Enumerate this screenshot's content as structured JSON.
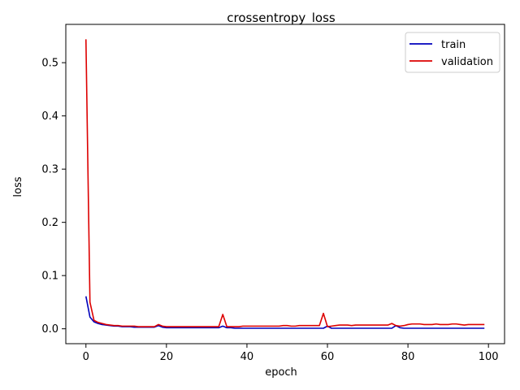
{
  "chart_data": {
    "type": "line",
    "title": "crossentropy_loss",
    "xlabel": "epoch",
    "ylabel": "loss",
    "xlim": [
      -5,
      104
    ],
    "ylim": [
      -0.028,
      0.572
    ],
    "xticks": [
      0,
      20,
      40,
      60,
      80,
      100
    ],
    "yticks": [
      0.0,
      0.1,
      0.2,
      0.3,
      0.4,
      0.5
    ],
    "grid": false,
    "legend_placement": "top-right",
    "series": [
      {
        "name": "train",
        "color": "#0000bb",
        "x": [
          0,
          1,
          2,
          3,
          4,
          5,
          6,
          7,
          8,
          9,
          10,
          11,
          12,
          13,
          14,
          15,
          16,
          17,
          18,
          19,
          20,
          21,
          22,
          23,
          24,
          25,
          26,
          27,
          28,
          29,
          30,
          31,
          32,
          33,
          34,
          35,
          36,
          37,
          38,
          39,
          40,
          41,
          42,
          43,
          44,
          45,
          46,
          47,
          48,
          49,
          50,
          51,
          52,
          53,
          54,
          55,
          56,
          57,
          58,
          59,
          60,
          61,
          62,
          63,
          64,
          65,
          66,
          67,
          68,
          69,
          70,
          71,
          72,
          73,
          74,
          75,
          76,
          77,
          78,
          79,
          80,
          81,
          82,
          83,
          84,
          85,
          86,
          87,
          88,
          89,
          90,
          91,
          92,
          93,
          94,
          95,
          96,
          97,
          98,
          99
        ],
        "y": [
          0.061,
          0.022,
          0.013,
          0.01,
          0.008,
          0.007,
          0.006,
          0.005,
          0.005,
          0.004,
          0.004,
          0.004,
          0.003,
          0.003,
          0.003,
          0.003,
          0.003,
          0.003,
          0.006,
          0.003,
          0.002,
          0.002,
          0.002,
          0.002,
          0.002,
          0.002,
          0.002,
          0.002,
          0.002,
          0.002,
          0.002,
          0.002,
          0.002,
          0.002,
          0.005,
          0.002,
          0.002,
          0.001,
          0.001,
          0.001,
          0.001,
          0.001,
          0.001,
          0.001,
          0.001,
          0.001,
          0.001,
          0.001,
          0.001,
          0.001,
          0.001,
          0.001,
          0.001,
          0.001,
          0.001,
          0.001,
          0.001,
          0.001,
          0.001,
          0.001,
          0.005,
          0.001,
          0.001,
          0.001,
          0.001,
          0.001,
          0.001,
          0.001,
          0.001,
          0.001,
          0.001,
          0.001,
          0.001,
          0.001,
          0.001,
          0.001,
          0.001,
          0.006,
          0.002,
          0.001,
          0.001,
          0.001,
          0.001,
          0.001,
          0.001,
          0.001,
          0.001,
          0.001,
          0.001,
          0.001,
          0.001,
          0.001,
          0.001,
          0.001,
          0.001,
          0.001,
          0.001,
          0.001,
          0.001,
          0.001
        ]
      },
      {
        "name": "validation",
        "color": "#dd0000",
        "x": [
          0,
          1,
          2,
          3,
          4,
          5,
          6,
          7,
          8,
          9,
          10,
          11,
          12,
          13,
          14,
          15,
          16,
          17,
          18,
          19,
          20,
          21,
          22,
          23,
          24,
          25,
          26,
          27,
          28,
          29,
          30,
          31,
          32,
          33,
          34,
          35,
          36,
          37,
          38,
          39,
          40,
          41,
          42,
          43,
          44,
          45,
          46,
          47,
          48,
          49,
          50,
          51,
          52,
          53,
          54,
          55,
          56,
          57,
          58,
          59,
          60,
          61,
          62,
          63,
          64,
          65,
          66,
          67,
          68,
          69,
          70,
          71,
          72,
          73,
          74,
          75,
          76,
          77,
          78,
          79,
          80,
          81,
          82,
          83,
          84,
          85,
          86,
          87,
          88,
          89,
          90,
          91,
          92,
          93,
          94,
          95,
          96,
          97,
          98,
          99
        ],
        "y": [
          0.544,
          0.05,
          0.016,
          0.012,
          0.01,
          0.008,
          0.007,
          0.006,
          0.006,
          0.005,
          0.005,
          0.005,
          0.005,
          0.004,
          0.004,
          0.004,
          0.004,
          0.004,
          0.008,
          0.005,
          0.004,
          0.004,
          0.004,
          0.004,
          0.004,
          0.004,
          0.004,
          0.004,
          0.004,
          0.004,
          0.004,
          0.004,
          0.004,
          0.004,
          0.027,
          0.004,
          0.004,
          0.004,
          0.004,
          0.005,
          0.005,
          0.005,
          0.005,
          0.005,
          0.005,
          0.005,
          0.005,
          0.005,
          0.005,
          0.006,
          0.006,
          0.005,
          0.005,
          0.006,
          0.006,
          0.006,
          0.006,
          0.006,
          0.006,
          0.029,
          0.004,
          0.005,
          0.006,
          0.007,
          0.007,
          0.007,
          0.006,
          0.007,
          0.007,
          0.007,
          0.007,
          0.007,
          0.007,
          0.007,
          0.007,
          0.007,
          0.01,
          0.006,
          0.005,
          0.006,
          0.008,
          0.009,
          0.009,
          0.009,
          0.008,
          0.008,
          0.008,
          0.009,
          0.008,
          0.008,
          0.008,
          0.009,
          0.009,
          0.008,
          0.007,
          0.008,
          0.008,
          0.008,
          0.008,
          0.008
        ]
      }
    ]
  }
}
